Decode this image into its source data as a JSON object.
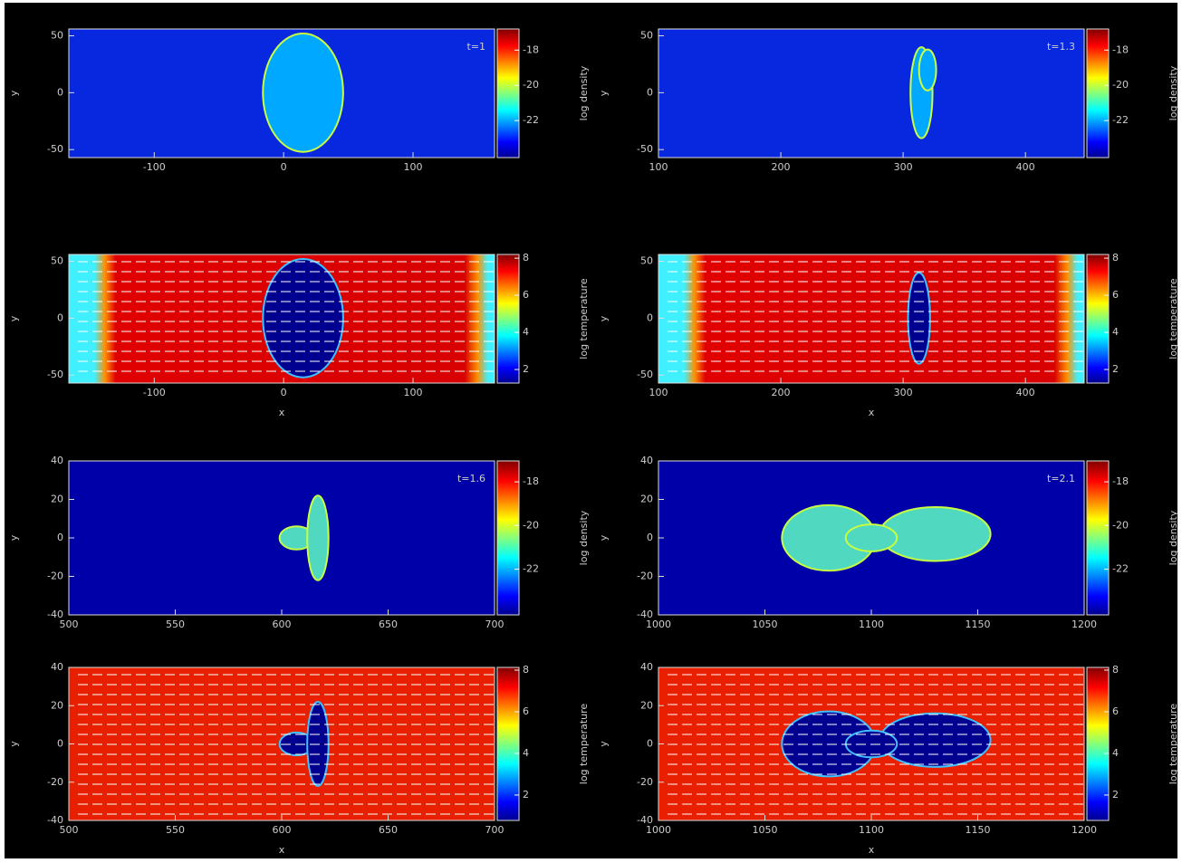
{
  "chart_data": [
    {
      "type": "heatmap",
      "annotation": "t=1",
      "ylabel": "y",
      "colorbar_label": "log density",
      "xlim": [
        -166,
        163
      ],
      "xticks": [
        -100,
        0,
        100
      ],
      "ylim": [
        -57,
        56
      ],
      "yticks": [
        -50,
        0,
        50
      ],
      "clim": [
        -24.1,
        -16.8
      ],
      "cticks": [
        -22,
        -20,
        -18
      ]
    },
    {
      "type": "heatmap",
      "annotation": "t=1.3",
      "ylabel": "y",
      "colorbar_label": "log density",
      "xlim": [
        100,
        448
      ],
      "xticks": [
        100,
        200,
        300,
        400
      ],
      "ylim": [
        -57,
        56
      ],
      "yticks": [
        -50,
        0,
        50
      ],
      "clim": [
        -24.1,
        -16.8
      ],
      "cticks": [
        -22,
        -20,
        -18
      ]
    },
    {
      "type": "heatmap",
      "xlabel": "x",
      "ylabel": "y",
      "colorbar_label": "log temperature",
      "xlim": [
        -166,
        163
      ],
      "xticks": [
        -100,
        0,
        100
      ],
      "ylim": [
        -57,
        56
      ],
      "yticks": [
        -50,
        0,
        50
      ],
      "clim": [
        1.27,
        8.2
      ],
      "cticks": [
        2,
        4,
        6,
        8
      ]
    },
    {
      "type": "heatmap",
      "xlabel": "x",
      "ylabel": "y",
      "colorbar_label": "log temperature",
      "xlim": [
        100,
        448
      ],
      "xticks": [
        100,
        200,
        300,
        400
      ],
      "ylim": [
        -57,
        56
      ],
      "yticks": [
        -50,
        0,
        50
      ],
      "clim": [
        1.27,
        8.2
      ],
      "cticks": [
        2,
        4,
        6,
        8
      ]
    },
    {
      "type": "heatmap",
      "annotation": "t=1.6",
      "ylabel": "y",
      "colorbar_label": "log density",
      "xlim": [
        500,
        700
      ],
      "xticks": [
        500,
        550,
        600,
        650,
        700
      ],
      "ylim": [
        -40,
        40
      ],
      "yticks": [
        -40,
        -20,
        0,
        20,
        40
      ],
      "clim": [
        -24.1,
        -17.04
      ],
      "cticks": [
        -22,
        -20,
        -18
      ]
    },
    {
      "type": "heatmap",
      "annotation": "t=2.1",
      "ylabel": "y",
      "colorbar_label": "log density",
      "xlim": [
        1000,
        1200
      ],
      "xticks": [
        1000,
        1050,
        1100,
        1150,
        1200
      ],
      "ylim": [
        -40,
        40
      ],
      "yticks": [
        -40,
        -20,
        0,
        20,
        40
      ],
      "clim": [
        -24.1,
        -17.04
      ],
      "cticks": [
        -22,
        -20,
        -18
      ]
    },
    {
      "type": "heatmap",
      "xlabel": "x",
      "ylabel": "y",
      "colorbar_label": "log temperature",
      "xlim": [
        500,
        700
      ],
      "xticks": [
        500,
        550,
        600,
        650,
        700
      ],
      "ylim": [
        -40,
        40
      ],
      "yticks": [
        -40,
        -20,
        0,
        20,
        40
      ],
      "clim": [
        0.78,
        8.13
      ],
      "cticks": [
        2,
        4,
        6,
        8
      ]
    },
    {
      "type": "heatmap",
      "xlabel": "x",
      "ylabel": "y",
      "colorbar_label": "log temperature",
      "xlim": [
        1000,
        1200
      ],
      "xticks": [
        1000,
        1050,
        1100,
        1150,
        1200
      ],
      "ylim": [
        -40,
        40
      ],
      "yticks": [
        -40,
        -20,
        0,
        20,
        40
      ],
      "clim": [
        0.78,
        8.13
      ],
      "cticks": [
        2,
        4,
        6,
        8
      ]
    }
  ]
}
